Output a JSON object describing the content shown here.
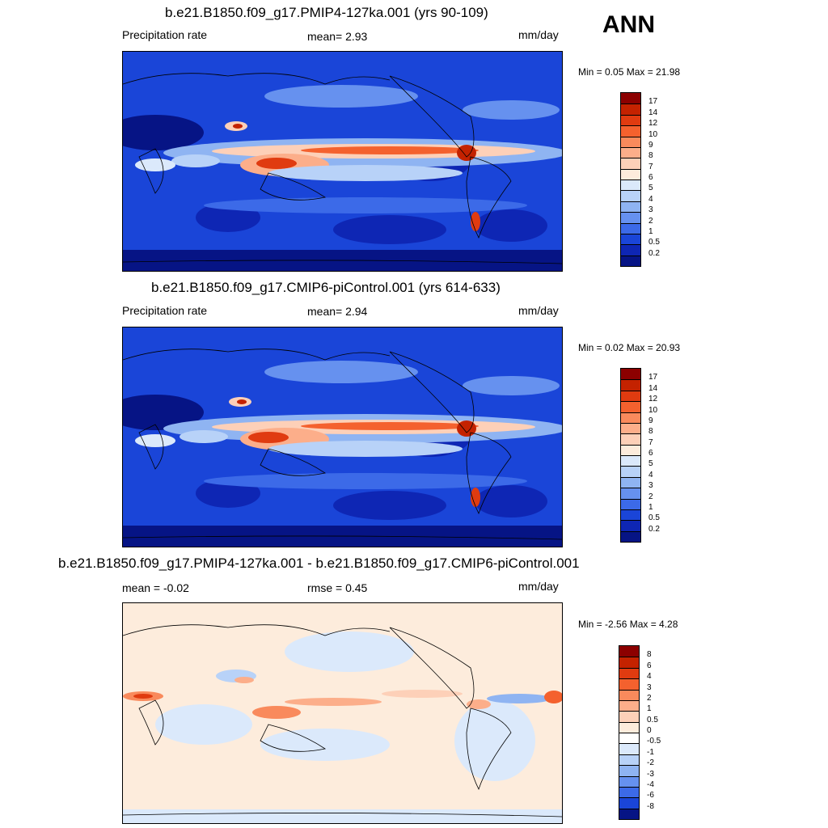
{
  "season_label": "ANN",
  "panels": [
    {
      "title": "b.e21.B1850.f09_g17.PMIP4-127ka.001 (yrs 90-109)",
      "left_label": "Precipitation rate",
      "center_label": "mean=   2.93",
      "right_label": "mm/day",
      "minmax": "Min =   0.05 Max =  21.98",
      "colorbar": {
        "labels": [
          "17",
          "14",
          "12",
          "10",
          "9",
          "8",
          "7",
          "6",
          "5",
          "4",
          "3",
          "2",
          "1",
          "0.5",
          "0.2"
        ],
        "colors": [
          "#8c0000",
          "#c42200",
          "#e03b10",
          "#f4612e",
          "#f98a5c",
          "#fcae8a",
          "#fdd0b8",
          "#fdecdc",
          "#dbe9fb",
          "#b8d2f8",
          "#8fb4f2",
          "#6691ef",
          "#3c6ae8",
          "#1a45d8",
          "#0e26b4",
          "#061485"
        ]
      }
    },
    {
      "title": "b.e21.B1850.f09_g17.CMIP6-piControl.001 (yrs 614-633)",
      "left_label": "Precipitation rate",
      "center_label": "mean=   2.94",
      "right_label": "mm/day",
      "minmax": "Min =   0.02 Max =  20.93",
      "colorbar": {
        "labels": [
          "17",
          "14",
          "12",
          "10",
          "9",
          "8",
          "7",
          "6",
          "5",
          "4",
          "3",
          "2",
          "1",
          "0.5",
          "0.2"
        ],
        "colors": [
          "#8c0000",
          "#c42200",
          "#e03b10",
          "#f4612e",
          "#f98a5c",
          "#fcae8a",
          "#fdd0b8",
          "#fdecdc",
          "#dbe9fb",
          "#b8d2f8",
          "#8fb4f2",
          "#6691ef",
          "#3c6ae8",
          "#1a45d8",
          "#0e26b4",
          "#061485"
        ]
      }
    },
    {
      "title": "b.e21.B1850.f09_g17.PMIP4-127ka.001 - b.e21.B1850.f09_g17.CMIP6-piControl.001",
      "left_label": "mean =  -0.02",
      "center_label": "rmse =    0.45",
      "right_label": "mm/day",
      "minmax": "Min =  -2.56 Max =    4.28",
      "colorbar": {
        "labels": [
          "8",
          "6",
          "4",
          "3",
          "2",
          "1",
          "0.5",
          "0",
          "-0.5",
          "-1",
          "-2",
          "-3",
          "-4",
          "-6",
          "-8"
        ],
        "colors": [
          "#8c0000",
          "#c42200",
          "#e03b10",
          "#f4612e",
          "#f98a5c",
          "#fcae8a",
          "#fdd0b8",
          "#fdecdc",
          "#ffffff",
          "#dbe9fb",
          "#b8d2f8",
          "#8fb4f2",
          "#6691ef",
          "#3c6ae8",
          "#1a45d8",
          "#061485"
        ]
      }
    }
  ]
}
